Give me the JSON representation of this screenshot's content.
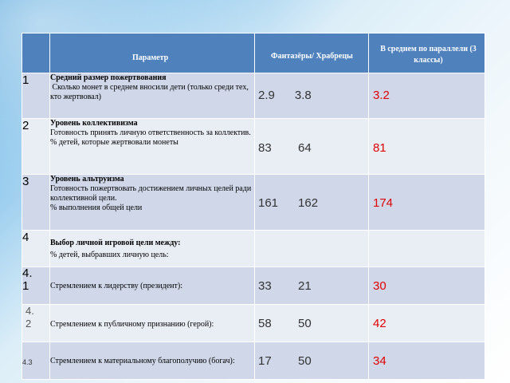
{
  "header": {
    "param": "Параметр",
    "fh": "Фантазёры/ Храбрецы",
    "avg": "В среднем по параллели (3 классы)"
  },
  "rows": [
    {
      "num": "1",
      "title": "Средний размер пожертвования",
      "desc": " Сколько монет в среднем вносили дети (только среди тех, кто жертвовал)",
      "vals": "2.9      3.8",
      "avg": "3.2"
    },
    {
      "num": "2",
      "title": "Уровень коллективизма",
      "desc": "Готовность принять личную ответственность за коллектив.",
      "desc2": "% детей, которые жертвовали монеты",
      "vals": "83        64",
      "avg": "81"
    },
    {
      "num": "3",
      "title": "Уровень альтруизма",
      "desc": "Готовность пожертвовать достижением личных целей ради коллективной цели.",
      "desc2": "% выполнения общей цели",
      "vals": "161      162",
      "avg": "174"
    },
    {
      "num": "4",
      "title": "Выбор личной игровой цели между:",
      "desc": "% детей, выбравших личную цель:",
      "vals": "",
      "avg": ""
    },
    {
      "num": "4.\n1",
      "title": "",
      "desc": "Стремлением к лидерству (президент):",
      "vals": "33        21",
      "avg": "30"
    },
    {
      "num": "4.\n2",
      "title": "",
      "desc": "Стремлением к публичному признанию (герой):",
      "vals": "58        50",
      "avg": "42"
    },
    {
      "num": "4.3",
      "title": "",
      "desc": "Стремлением к материальному благополучию (богач):",
      "vals": "17        50",
      "avg": "34"
    }
  ],
  "colors": {
    "header": "#4f81bd",
    "band_dark": "#cfd7e8",
    "band_light": "#e9edf4",
    "avg_text": "#e00000"
  }
}
